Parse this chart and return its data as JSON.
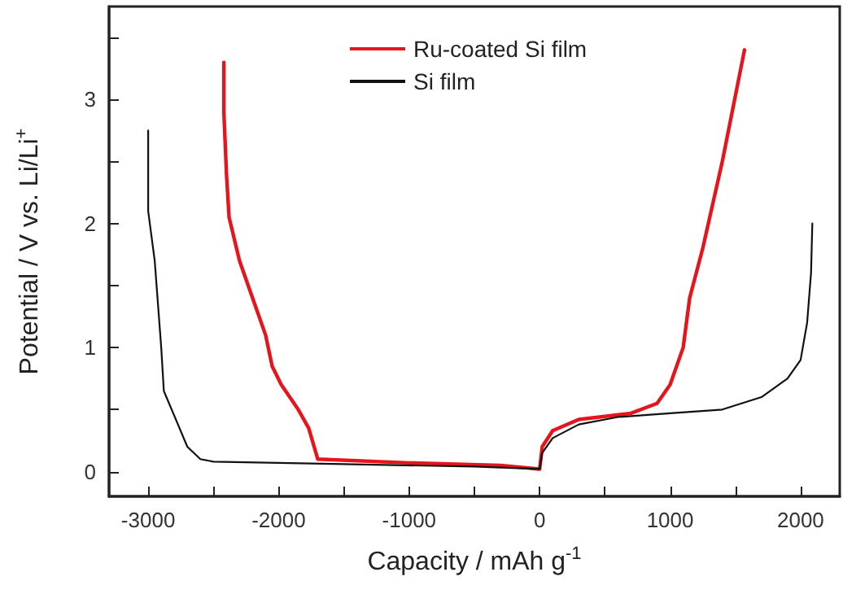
{
  "chart_data": {
    "type": "line",
    "xlabel": "Capacity / mAh g$^{-1}$",
    "ylabel": "Potential / V vs. Li/Li$^{+}$",
    "xlim": [
      -3300,
      2300
    ],
    "ylim": [
      -0.2,
      3.75
    ],
    "xticks": [
      -3000,
      {
        "value": -2500,
        "label": null
      },
      -2000,
      {
        "value": -1500,
        "label": null
      },
      -1000,
      {
        "value": -500,
        "label": null
      },
      0,
      {
        "value": 500,
        "label": null
      },
      1000,
      {
        "value": 1500,
        "label": null
      },
      2000
    ],
    "yticks": [
      0,
      {
        "value": 0.5,
        "label": null
      },
      1,
      {
        "value": 1.5,
        "label": null
      },
      2,
      {
        "value": 2.5,
        "label": null
      },
      3,
      {
        "value": 3.5,
        "label": null
      }
    ],
    "grid": false,
    "legend": "top",
    "marker": "none",
    "line_style": "solid",
    "series": [
      {
        "name": "Ru-coated Si film",
        "color": "#e8141c",
        "x": [
          -2420,
          -2420,
          -2400,
          -2380,
          -2300,
          -2200,
          -2100,
          -2050,
          -1980,
          -1850,
          -1770,
          -1700,
          -1000,
          -300,
          0,
          20,
          100,
          300,
          700,
          900,
          1000,
          1100,
          1150,
          1250,
          1400,
          1570
        ],
        "values": [
          3.3,
          2.9,
          2.4,
          2.05,
          1.7,
          1.4,
          1.1,
          0.85,
          0.7,
          0.5,
          0.35,
          0.1,
          0.07,
          0.05,
          0.02,
          0.2,
          0.33,
          0.42,
          0.47,
          0.55,
          0.7,
          1.0,
          1.4,
          1.8,
          2.5,
          3.4
        ]
      },
      {
        "name": "Si film",
        "color": "#111111",
        "x": [
          -3000,
          -3000,
          -2950,
          -2900,
          -2880,
          -2800,
          -2700,
          -2600,
          -2500,
          -1500,
          -500,
          0,
          20,
          100,
          300,
          600,
          1000,
          1400,
          1700,
          1900,
          2000,
          2050,
          2080,
          2090
        ],
        "values": [
          2.75,
          2.1,
          1.7,
          1.0,
          0.65,
          0.45,
          0.2,
          0.1,
          0.08,
          0.06,
          0.04,
          0.02,
          0.15,
          0.27,
          0.38,
          0.44,
          0.47,
          0.5,
          0.6,
          0.75,
          0.9,
          1.2,
          1.6,
          2.0
        ]
      }
    ]
  }
}
